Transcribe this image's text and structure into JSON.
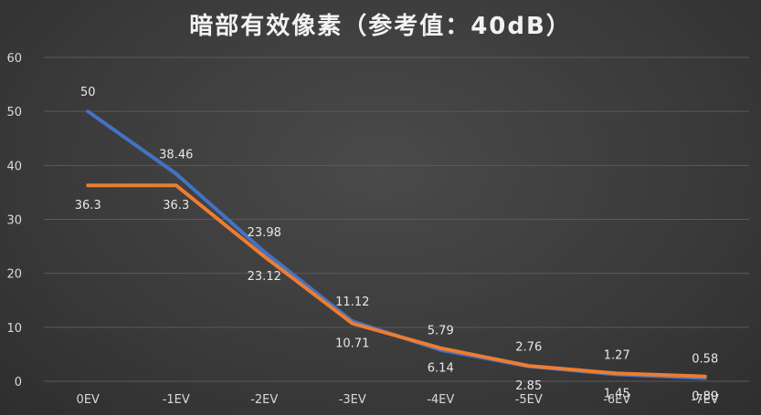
{
  "chart_data": {
    "type": "line",
    "title": "暗部有效像素（参考值：40dB）",
    "categories": [
      "0EV",
      "-1EV",
      "-2EV",
      "-3EV",
      "-4EV",
      "-5EV",
      "-6EV",
      "-7EV"
    ],
    "series": [
      {
        "values": [
          50,
          38.46,
          23.98,
          11.12,
          5.79,
          2.76,
          1.27,
          0.58
        ],
        "color": "#4472c4",
        "labels": [
          "50",
          "38.46",
          "23.98",
          "11.12",
          "5.79",
          "2.76",
          "1.27",
          "0.58"
        ]
      },
      {
        "values": [
          36.3,
          36.3,
          23.12,
          10.71,
          6.14,
          2.85,
          1.45,
          0.89
        ],
        "color": "#ed7d31",
        "labels": [
          "36.3",
          "36.3",
          "23.12",
          "10.71",
          "6.14",
          "2.85",
          "1.45",
          "0.89"
        ]
      }
    ],
    "y_ticks": [
      "0",
      "10",
      "20",
      "30",
      "40",
      "50",
      "60"
    ],
    "ylim": [
      0,
      60
    ],
    "grid": true,
    "legend": "none",
    "colors": {
      "background": "#3a3a3a",
      "grid": "#5a5a5a",
      "text": "#d9d9d9"
    }
  }
}
